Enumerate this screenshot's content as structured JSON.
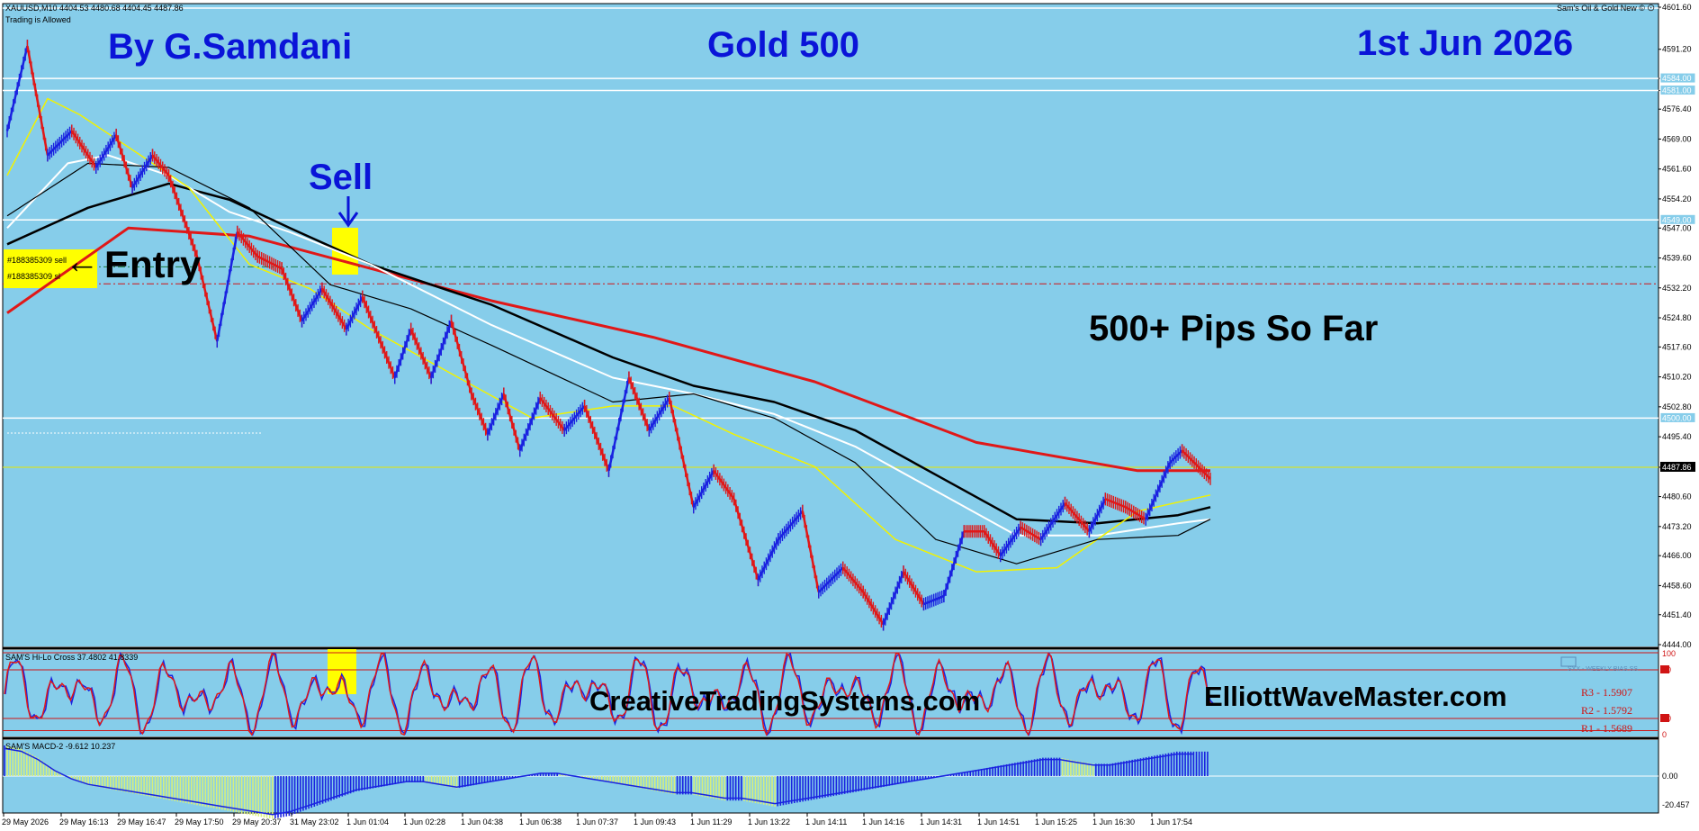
{
  "window": {
    "symbol_line": "XAUUSD,M10  4404.53 4480.68 4404.45 4487.86",
    "trading_note": "Trading is Allowed",
    "top_right_label": "Sam's Oil & Gold New ©"
  },
  "texts": {
    "author": "By G.Samdani",
    "title": "Gold 500",
    "date": "1st Jun 2026",
    "sell": "Sell",
    "entry": "Entry",
    "pips": "500+ Pips So Far",
    "watermark_ctS": "CreativeTradingSystems.com",
    "watermark_ewm": "ElliottWaveMaster.com",
    "order1": "#188385309 sell",
    "order2": "#188385309 sl",
    "osc_label": "SAM'S Hi-Lo Cross 37.4802 41.8339",
    "macd_label": "SAM'S MACD-2 -9.612 10.237",
    "r3": "R3 - 1.5907",
    "r2": "R2 - 1.5792",
    "r1": "R1 - 1.5689",
    "weekly_label": "SYX - WEEKLY BIAS SS"
  },
  "colors": {
    "background": "#86cdea",
    "up_bar": "#1a22e0",
    "down_bar": "#e01818",
    "ma_red": "#e01818",
    "ma_black": "#000000",
    "ma_white": "#ffffff",
    "ma_yellow": "#f2f200",
    "hist_up": "#1a22e0",
    "hist_down": "#d8ef7a",
    "title_blue": "#0a14d8"
  },
  "chart_data": {
    "type": "line",
    "symbol": "XAUUSD",
    "timeframe": "M10",
    "x_ticks": [
      "29 May 2026",
      "29 May 16:13",
      "29 May 16:47",
      "29 May 17:50",
      "29 May 20:37",
      "31 May 23:02",
      "1 Jun 01:04",
      "1 Jun 02:28",
      "1 Jun 04:38",
      "1 Jun 06:38",
      "1 Jun 07:37",
      "1 Jun 09:43",
      "1 Jun 11:29",
      "1 Jun 13:22",
      "1 Jun 14:11",
      "1 Jun 14:16",
      "1 Jun 14:31",
      "1 Jun 14:51",
      "1 Jun 15:25",
      "1 Jun 16:30",
      "1 Jun 17:54"
    ],
    "y_ticks": [
      "4601.60",
      "4591.20",
      "4584.00",
      "4581.00",
      "4576.40",
      "4569.00",
      "4561.60",
      "4554.20",
      "4547.00",
      "4539.60",
      "4532.20",
      "4524.80",
      "4517.60",
      "4510.20",
      "4502.80",
      "4495.40",
      "4487.86",
      "4480.60",
      "4473.20",
      "4466.00",
      "4458.60",
      "4451.40",
      "4444.00"
    ],
    "y_range": [
      4444.0,
      4601.6
    ],
    "price_boxes": [
      "4584.00",
      "4581.00",
      "4549.00",
      "4500.00"
    ],
    "current_price": "4487.86",
    "horizontal_levels": [
      4584.0,
      4581.0,
      4549.0,
      4500.0
    ],
    "order_levels": {
      "sell_entry": 4537.4,
      "stop_loss": 4533.2
    },
    "current_level": 4487.86,
    "price_path": {
      "x": [
        0,
        5,
        10,
        16,
        22,
        27,
        31,
        36,
        40,
        47,
        52,
        57,
        62,
        68,
        73,
        78,
        84,
        88,
        96,
        100,
        105,
        110,
        115,
        119,
        123,
        127,
        132,
        138,
        143,
        149,
        154,
        159,
        164,
        170,
        175,
        180,
        186,
        191,
        197,
        201,
        207,
        212,
        217,
        222,
        227,
        232,
        237,
        242,
        246,
        251,
        256,
        262,
        268,
        272,
        277,
        282,
        288,
        291,
        298
      ],
      "y": [
        4571,
        4592,
        4565,
        4571,
        4562,
        4570,
        4557,
        4565,
        4560,
        4540,
        4519,
        4546,
        4540,
        4537,
        4524,
        4532,
        4522,
        4530,
        4510,
        4522,
        4510,
        4524,
        4506,
        4496,
        4506,
        4492,
        4505,
        4497,
        4503,
        4487,
        4510,
        4497,
        4505,
        4478,
        4487,
        4480,
        4460,
        4470,
        4477,
        4457,
        4463,
        4457,
        4449,
        4462,
        4454,
        4456,
        4472,
        4472,
        4466,
        4473,
        4470,
        4479,
        4472,
        4480,
        4478,
        4475,
        4489,
        4492,
        4485
      ]
    },
    "series": [
      {
        "name": "",
        "color": "red",
        "x": [
          0,
          30,
          60,
          90,
          120,
          160,
          200,
          240,
          280,
          298
        ],
        "y": [
          4526,
          4547,
          4545,
          4537,
          4529,
          4520,
          4509,
          4494,
          4487,
          4487
        ]
      },
      {
        "name": "",
        "color": "black",
        "x": [
          0,
          20,
          40,
          55,
          70,
          90,
          120,
          150,
          170,
          190,
          210,
          230,
          250,
          270,
          290,
          298
        ],
        "y": [
          4543,
          4552,
          4558,
          4554,
          4547,
          4538,
          4528,
          4515,
          4508,
          4504,
          4497,
          4486,
          4475,
          4474,
          4476,
          4478
        ]
      },
      {
        "name": "",
        "color": "white",
        "x": [
          0,
          15,
          25,
          40,
          55,
          70,
          90,
          120,
          150,
          170,
          190,
          210,
          230,
          250,
          270,
          290,
          298
        ],
        "y": [
          4547,
          4563,
          4565,
          4560,
          4551,
          4546,
          4538,
          4523,
          4510,
          4506,
          4501,
          4493,
          4482,
          4471,
          4471,
          4474,
          4475
        ]
      },
      {
        "name": "",
        "color": "yellow",
        "x": [
          0,
          10,
          18,
          30,
          45,
          60,
          75,
          90,
          110,
          130,
          150,
          165,
          180,
          200,
          220,
          240,
          260,
          280,
          298
        ],
        "y": [
          4560,
          4579,
          4575,
          4567,
          4557,
          4538,
          4532,
          4522,
          4511,
          4500,
          4503,
          4503,
          4496,
          4488,
          4470,
          4462,
          4463,
          4477,
          4481
        ]
      },
      {
        "name": "",
        "color": "black-thin",
        "x": [
          0,
          20,
          40,
          60,
          80,
          100,
          120,
          150,
          170,
          190,
          210,
          230,
          250,
          270,
          290,
          298
        ],
        "y": [
          4550,
          4563,
          4562,
          4552,
          4533,
          4527,
          4518,
          4504,
          4506,
          4500,
          4489,
          4470,
          4464,
          4470,
          4471,
          4475
        ]
      }
    ],
    "oscillator": {
      "levels": [
        "100",
        "80",
        "20",
        "0"
      ],
      "note": "stochastic-style oscillator between 0 and 100 with red/blue lines"
    },
    "macd_histogram": {
      "y_ticks": [
        "0.00",
        "-20.457"
      ],
      "sample_values": [
        10,
        9,
        6,
        2,
        -1,
        -3,
        -4,
        -5,
        -6,
        -7,
        -8,
        -9,
        -10,
        -11,
        -12,
        -13,
        -14,
        -13,
        -11,
        -9,
        -7,
        -5,
        -4,
        -3,
        -2,
        -2,
        -3,
        -4,
        -3,
        -2,
        -1,
        0,
        1,
        1,
        0,
        -1,
        -2,
        -3,
        -4,
        -5,
        -6,
        -6,
        -7,
        -8,
        -8,
        -9,
        -10,
        -9,
        -8,
        -7,
        -6,
        -5,
        -4,
        -3,
        -2,
        -1,
        0,
        1,
        2,
        3,
        4,
        5,
        6,
        6,
        5,
        4,
        4,
        5,
        6,
        7,
        8,
        8
      ]
    }
  }
}
